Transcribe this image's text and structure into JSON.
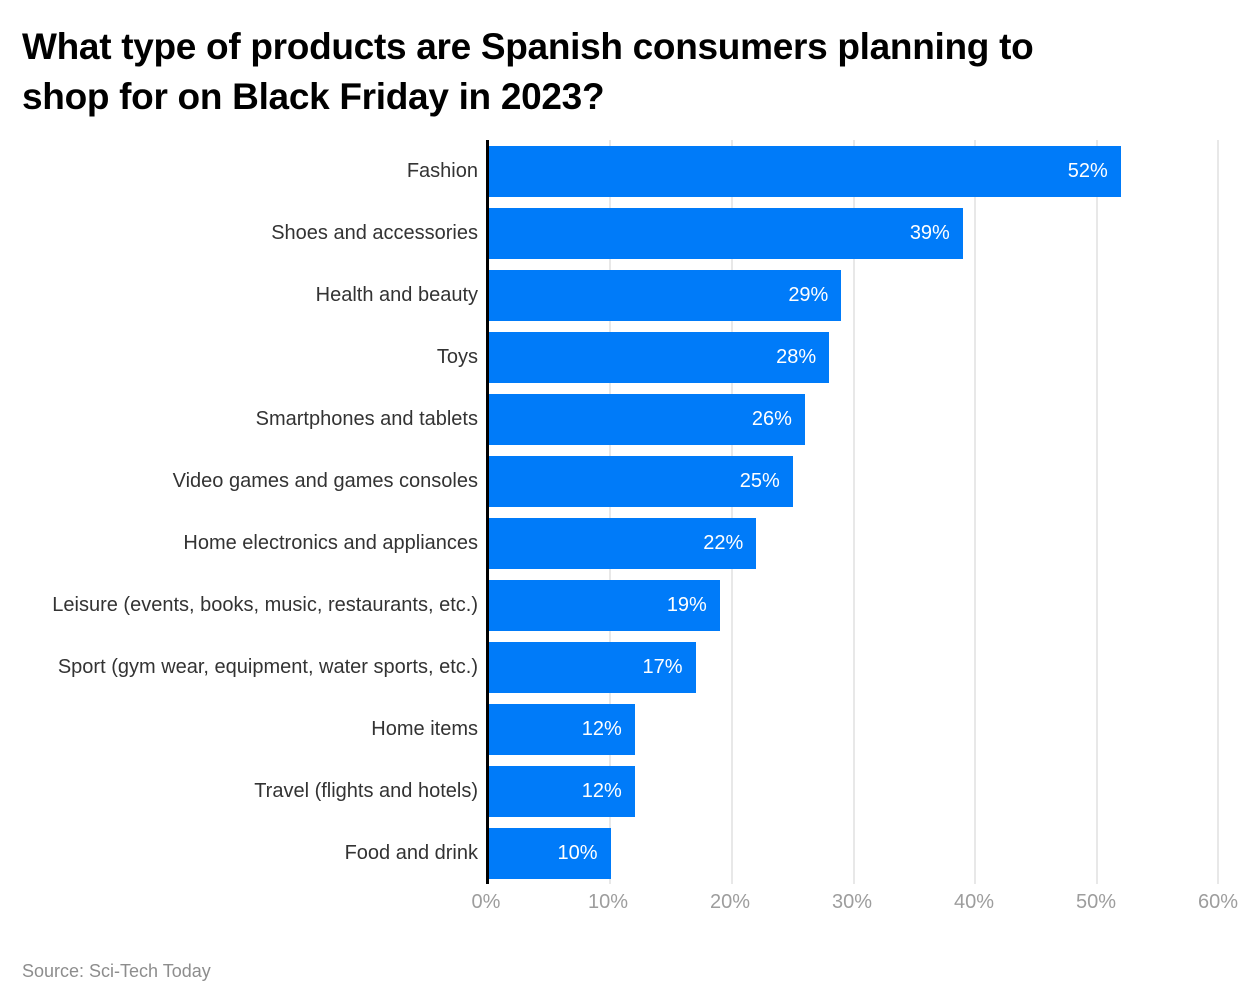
{
  "title": {
    "line1": "What type of products are Spanish consumers planning to",
    "line2": "shop for on Black Friday in 2023?"
  },
  "source": "Source: Sci-Tech Today",
  "colors": {
    "bar": "#007bf9",
    "gridline": "#e8e8e8",
    "axis": "#000000",
    "tick_label": "#9d9d9d",
    "category_label": "#333333",
    "value_label": "#ffffff",
    "title": "#000000",
    "source": "#8d8d8d"
  },
  "chart_data": {
    "type": "bar",
    "orientation": "horizontal",
    "title": "What type of products are Spanish consumers planning to shop for on Black Friday in 2023?",
    "categories": [
      "Fashion",
      "Shoes and accessories",
      "Health and beauty",
      "Toys",
      "Smartphones and tablets",
      "Video games and games consoles",
      "Home electronics and appliances",
      "Leisure (events, books, music, restaurants, etc.)",
      "Sport (gym wear, equipment, water sports, etc.)",
      "Home items",
      "Travel (flights and hotels)",
      "Food and drink"
    ],
    "values": [
      52,
      39,
      29,
      28,
      26,
      25,
      22,
      19,
      17,
      12,
      12,
      10
    ],
    "value_labels": [
      "52%",
      "39%",
      "29%",
      "28%",
      "26%",
      "25%",
      "22%",
      "19%",
      "17%",
      "12%",
      "12%",
      "10%"
    ],
    "x_ticks": [
      "0%",
      "10%",
      "20%",
      "30%",
      "40%",
      "50%",
      "60%"
    ],
    "x_tick_values": [
      0,
      10,
      20,
      30,
      40,
      50,
      60
    ],
    "xlim": [
      0,
      60
    ],
    "xlabel": "",
    "ylabel": "",
    "grid": true,
    "legend": false,
    "source": "Sci-Tech Today"
  }
}
